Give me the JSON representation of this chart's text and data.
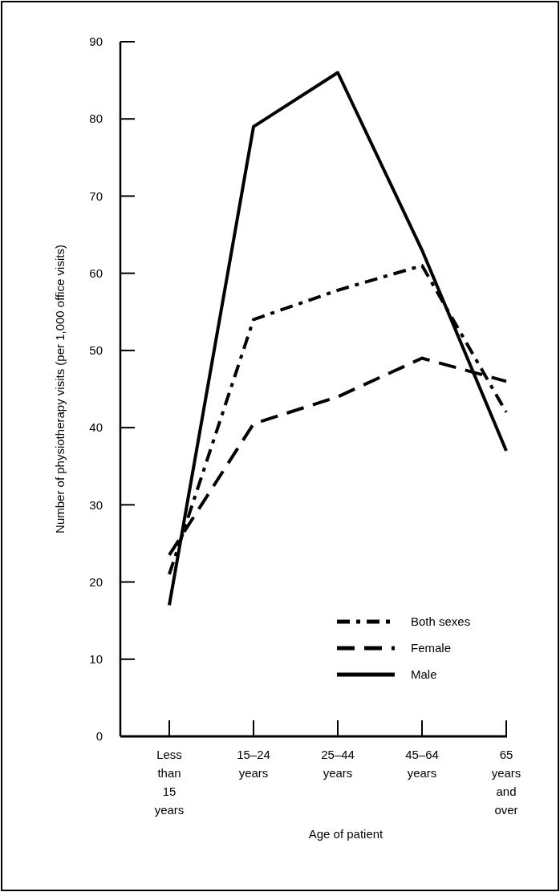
{
  "chart_data": {
    "type": "line",
    "xlabel": "Age of patient",
    "ylabel": "Number of physiotherapy visits (per 1,000 office visits)",
    "categories": [
      "Less than 15 years",
      "15–24 years",
      "25–44 years",
      "45–64 years",
      "65 years and over"
    ],
    "ylim": [
      0,
      90
    ],
    "yticks": [
      0,
      10,
      20,
      30,
      40,
      50,
      60,
      70,
      80,
      90
    ],
    "grid": false,
    "legend": "bottom right",
    "series": [
      {
        "name": "Both sexes",
        "color": "#000000",
        "line_style": "dashdot",
        "values": [
          21,
          54,
          57.8,
          61,
          42
        ]
      },
      {
        "name": "Female",
        "color": "#000000",
        "line_style": "dashed",
        "values": [
          23.5,
          40.5,
          44,
          49,
          46
        ]
      },
      {
        "name": "Male",
        "color": "#000000",
        "line_style": "solid",
        "values": [
          17,
          79,
          86,
          63,
          37
        ]
      }
    ]
  }
}
